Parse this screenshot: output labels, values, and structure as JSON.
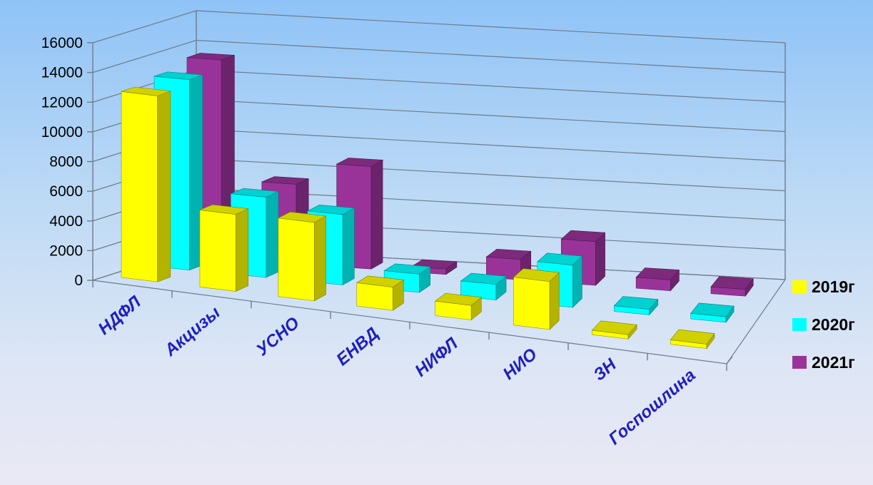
{
  "chart_data": {
    "type": "bar",
    "title": "",
    "xlabel": "",
    "ylabel": "",
    "ylim": [
      0,
      16000
    ],
    "yticks": [
      "0",
      "2000",
      "4000",
      "6000",
      "8000",
      "10000",
      "12000",
      "14000",
      "16000"
    ],
    "categories": [
      "НДФЛ",
      "Акцизы",
      "УСНО",
      "ЕНВД",
      "НИФЛ",
      "НИО",
      "ЗН",
      "Госпошлина"
    ],
    "series": [
      {
        "name": "2019г",
        "color": "#ffff00",
        "values": [
          12800,
          5300,
          5400,
          1600,
          1000,
          3300,
          300,
          300
        ]
      },
      {
        "name": "2020г",
        "color": "#00ffff",
        "values": [
          13500,
          5700,
          5000,
          1300,
          1100,
          3000,
          400,
          400
        ]
      },
      {
        "name": "2021г",
        "color": "#993399",
        "values": [
          14500,
          5800,
          7500,
          400,
          1500,
          3200,
          800,
          500
        ]
      }
    ],
    "grid": true,
    "legend_position": "right",
    "style": "3d-clustered-columns"
  }
}
